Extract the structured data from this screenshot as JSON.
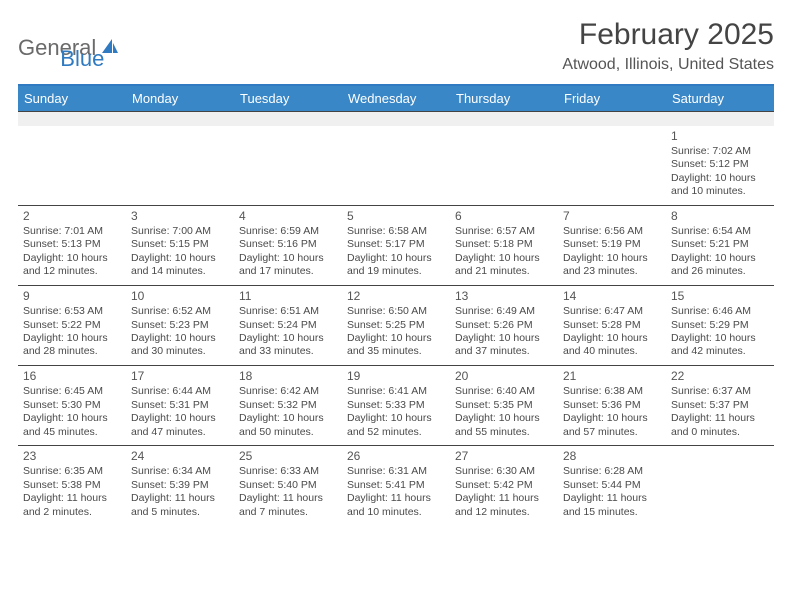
{
  "logo": {
    "part1": "General",
    "part2": "Blue"
  },
  "title": "February 2025",
  "subtitle": "Atwood, Illinois, United States",
  "colors": {
    "accent": "#3a87c7",
    "rule": "#2f7ac0",
    "text": "#4a4a4a",
    "daybg_blank": "#f0f0f0"
  },
  "weekdays": [
    "Sunday",
    "Monday",
    "Tuesday",
    "Wednesday",
    "Thursday",
    "Friday",
    "Saturday"
  ],
  "weeks": [
    [
      null,
      null,
      null,
      null,
      null,
      null,
      {
        "d": "1",
        "sr": "Sunrise: 7:02 AM",
        "ss": "Sunset: 5:12 PM",
        "dl": "Daylight: 10 hours and 10 minutes."
      }
    ],
    [
      {
        "d": "2",
        "sr": "Sunrise: 7:01 AM",
        "ss": "Sunset: 5:13 PM",
        "dl": "Daylight: 10 hours and 12 minutes."
      },
      {
        "d": "3",
        "sr": "Sunrise: 7:00 AM",
        "ss": "Sunset: 5:15 PM",
        "dl": "Daylight: 10 hours and 14 minutes."
      },
      {
        "d": "4",
        "sr": "Sunrise: 6:59 AM",
        "ss": "Sunset: 5:16 PM",
        "dl": "Daylight: 10 hours and 17 minutes."
      },
      {
        "d": "5",
        "sr": "Sunrise: 6:58 AM",
        "ss": "Sunset: 5:17 PM",
        "dl": "Daylight: 10 hours and 19 minutes."
      },
      {
        "d": "6",
        "sr": "Sunrise: 6:57 AM",
        "ss": "Sunset: 5:18 PM",
        "dl": "Daylight: 10 hours and 21 minutes."
      },
      {
        "d": "7",
        "sr": "Sunrise: 6:56 AM",
        "ss": "Sunset: 5:19 PM",
        "dl": "Daylight: 10 hours and 23 minutes."
      },
      {
        "d": "8",
        "sr": "Sunrise: 6:54 AM",
        "ss": "Sunset: 5:21 PM",
        "dl": "Daylight: 10 hours and 26 minutes."
      }
    ],
    [
      {
        "d": "9",
        "sr": "Sunrise: 6:53 AM",
        "ss": "Sunset: 5:22 PM",
        "dl": "Daylight: 10 hours and 28 minutes."
      },
      {
        "d": "10",
        "sr": "Sunrise: 6:52 AM",
        "ss": "Sunset: 5:23 PM",
        "dl": "Daylight: 10 hours and 30 minutes."
      },
      {
        "d": "11",
        "sr": "Sunrise: 6:51 AM",
        "ss": "Sunset: 5:24 PM",
        "dl": "Daylight: 10 hours and 33 minutes."
      },
      {
        "d": "12",
        "sr": "Sunrise: 6:50 AM",
        "ss": "Sunset: 5:25 PM",
        "dl": "Daylight: 10 hours and 35 minutes."
      },
      {
        "d": "13",
        "sr": "Sunrise: 6:49 AM",
        "ss": "Sunset: 5:26 PM",
        "dl": "Daylight: 10 hours and 37 minutes."
      },
      {
        "d": "14",
        "sr": "Sunrise: 6:47 AM",
        "ss": "Sunset: 5:28 PM",
        "dl": "Daylight: 10 hours and 40 minutes."
      },
      {
        "d": "15",
        "sr": "Sunrise: 6:46 AM",
        "ss": "Sunset: 5:29 PM",
        "dl": "Daylight: 10 hours and 42 minutes."
      }
    ],
    [
      {
        "d": "16",
        "sr": "Sunrise: 6:45 AM",
        "ss": "Sunset: 5:30 PM",
        "dl": "Daylight: 10 hours and 45 minutes."
      },
      {
        "d": "17",
        "sr": "Sunrise: 6:44 AM",
        "ss": "Sunset: 5:31 PM",
        "dl": "Daylight: 10 hours and 47 minutes."
      },
      {
        "d": "18",
        "sr": "Sunrise: 6:42 AM",
        "ss": "Sunset: 5:32 PM",
        "dl": "Daylight: 10 hours and 50 minutes."
      },
      {
        "d": "19",
        "sr": "Sunrise: 6:41 AM",
        "ss": "Sunset: 5:33 PM",
        "dl": "Daylight: 10 hours and 52 minutes."
      },
      {
        "d": "20",
        "sr": "Sunrise: 6:40 AM",
        "ss": "Sunset: 5:35 PM",
        "dl": "Daylight: 10 hours and 55 minutes."
      },
      {
        "d": "21",
        "sr": "Sunrise: 6:38 AM",
        "ss": "Sunset: 5:36 PM",
        "dl": "Daylight: 10 hours and 57 minutes."
      },
      {
        "d": "22",
        "sr": "Sunrise: 6:37 AM",
        "ss": "Sunset: 5:37 PM",
        "dl": "Daylight: 11 hours and 0 minutes."
      }
    ],
    [
      {
        "d": "23",
        "sr": "Sunrise: 6:35 AM",
        "ss": "Sunset: 5:38 PM",
        "dl": "Daylight: 11 hours and 2 minutes."
      },
      {
        "d": "24",
        "sr": "Sunrise: 6:34 AM",
        "ss": "Sunset: 5:39 PM",
        "dl": "Daylight: 11 hours and 5 minutes."
      },
      {
        "d": "25",
        "sr": "Sunrise: 6:33 AM",
        "ss": "Sunset: 5:40 PM",
        "dl": "Daylight: 11 hours and 7 minutes."
      },
      {
        "d": "26",
        "sr": "Sunrise: 6:31 AM",
        "ss": "Sunset: 5:41 PM",
        "dl": "Daylight: 11 hours and 10 minutes."
      },
      {
        "d": "27",
        "sr": "Sunrise: 6:30 AM",
        "ss": "Sunset: 5:42 PM",
        "dl": "Daylight: 11 hours and 12 minutes."
      },
      {
        "d": "28",
        "sr": "Sunrise: 6:28 AM",
        "ss": "Sunset: 5:44 PM",
        "dl": "Daylight: 11 hours and 15 minutes."
      },
      null
    ]
  ]
}
